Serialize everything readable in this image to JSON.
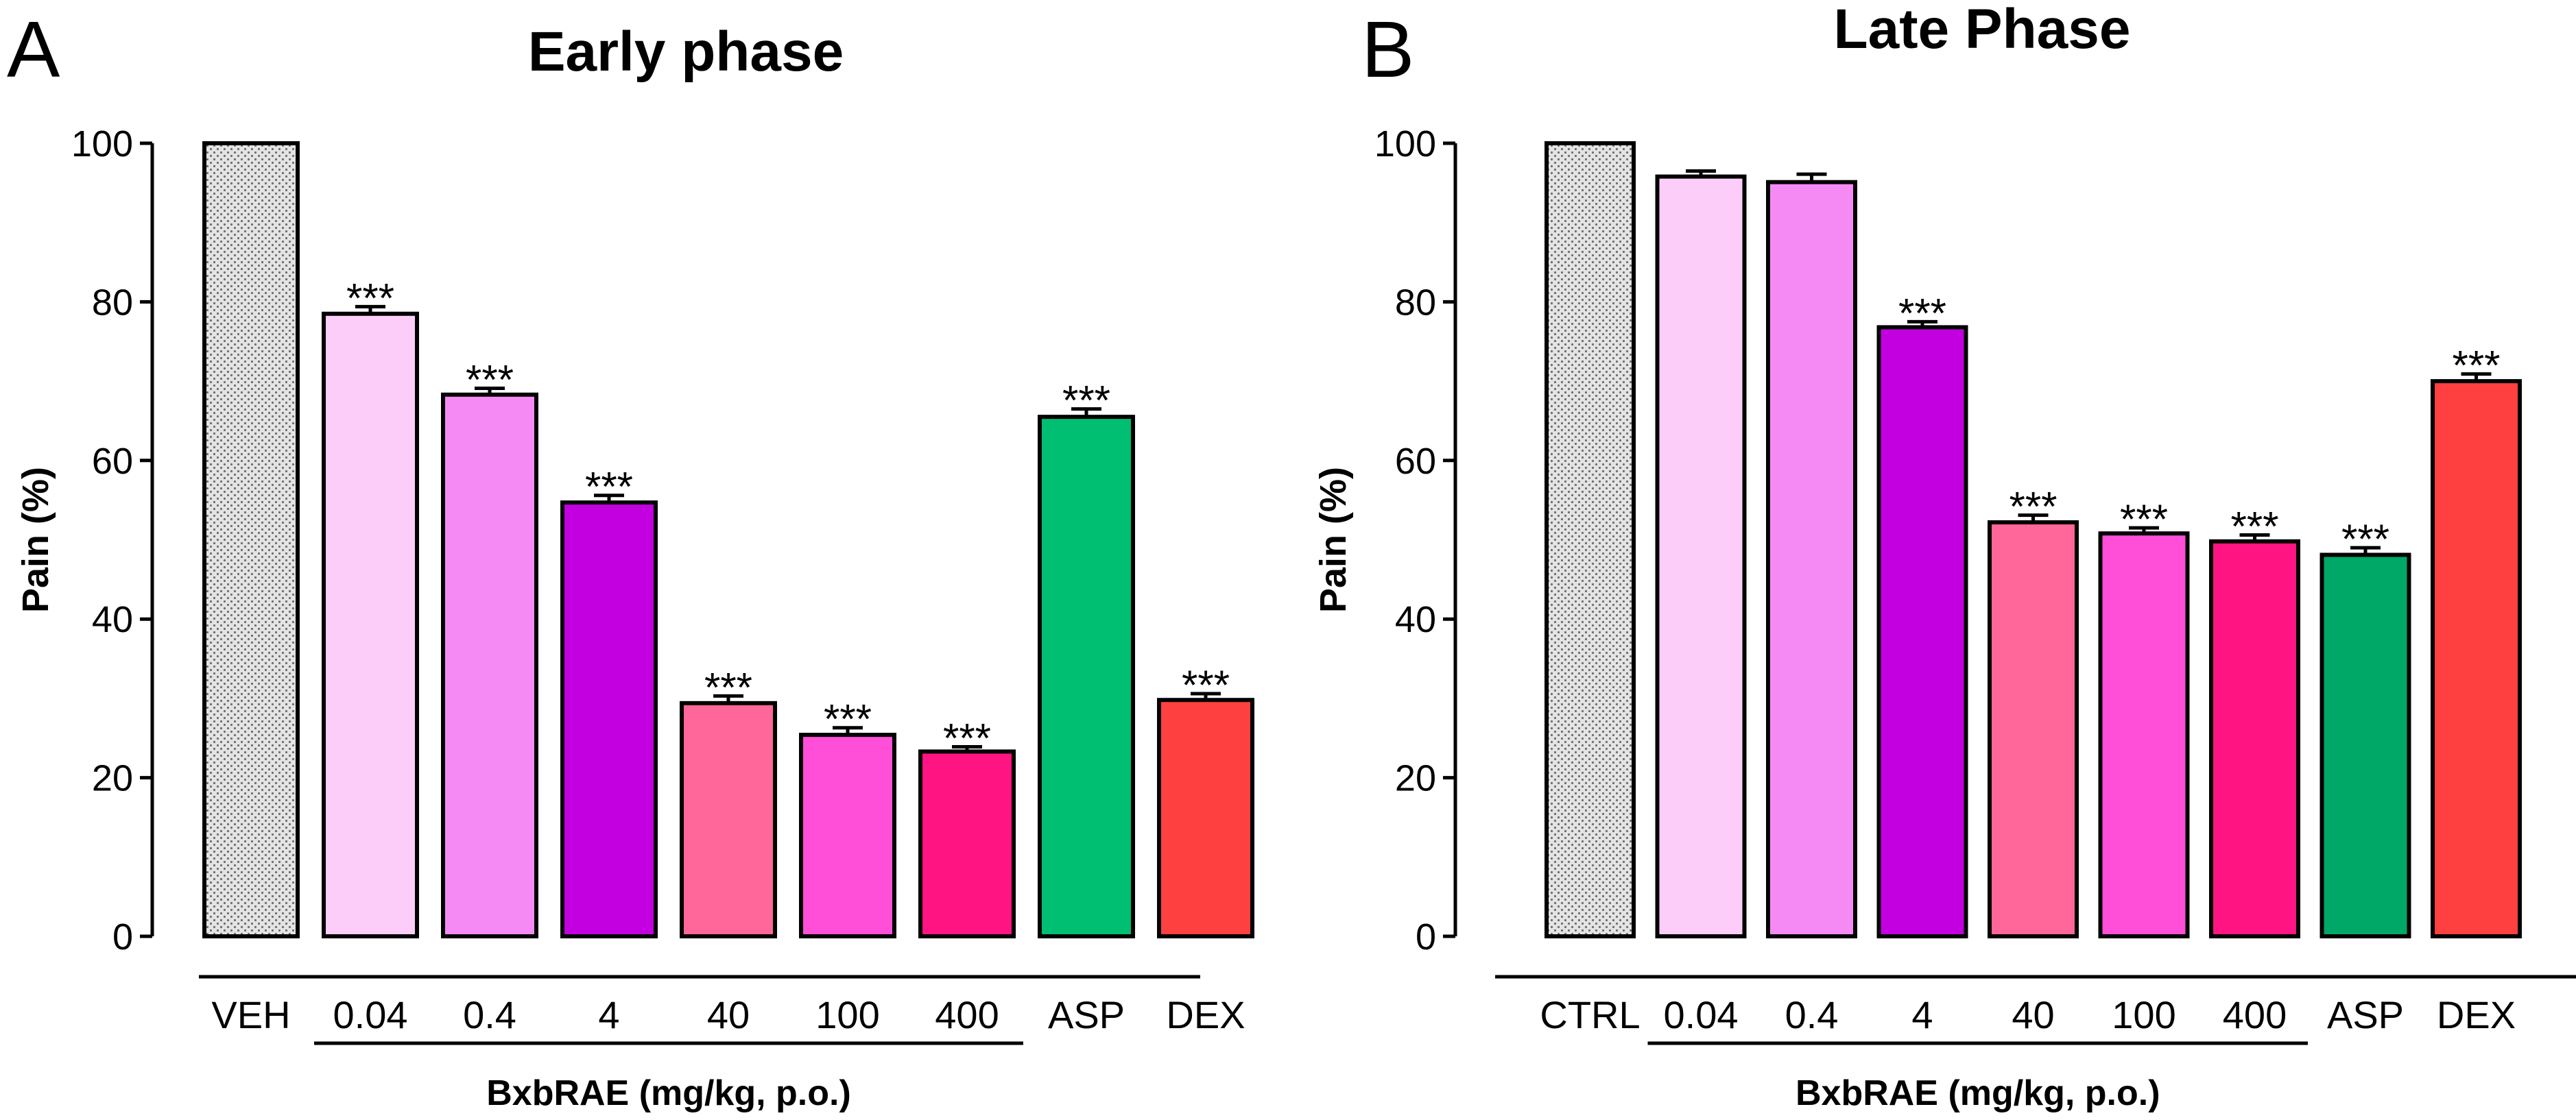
{
  "chart_data": [
    {
      "type": "bar",
      "panel_label": "A",
      "title": "Early phase",
      "ylabel": "Pain (%)",
      "ylim": [
        0,
        100
      ],
      "yticks": [
        0,
        20,
        40,
        60,
        80,
        100
      ],
      "categories": [
        "VEH",
        "0.04",
        "0.4",
        "4",
        "40",
        "100",
        "400",
        "ASP",
        "DEX"
      ],
      "values": [
        100,
        78.5,
        68.3,
        54.7,
        29.4,
        25.4,
        23.3,
        65.5,
        29.8
      ],
      "errors": [
        0,
        0.9,
        0.8,
        0.9,
        0.9,
        0.9,
        0.6,
        1.0,
        0.8
      ],
      "significance": [
        "",
        "***",
        "***",
        "***",
        "***",
        "***",
        "***",
        "***",
        "***"
      ],
      "colors": [
        "#d9d9d9",
        "#fccdf8",
        "#f58af5",
        "#c300e0",
        "#ff6699",
        "#ff4fd8",
        "#ff1482",
        "#00bf72",
        "#ff4040"
      ],
      "group_label": "BxbRAE (mg/kg, p.o.)",
      "group_range": [
        1,
        6
      ]
    },
    {
      "type": "bar",
      "panel_label": "B",
      "title": "Late Phase",
      "ylabel": "Pain (%)",
      "ylim": [
        0,
        100
      ],
      "yticks": [
        0,
        20,
        40,
        60,
        80,
        100
      ],
      "categories": [
        "CTRL",
        "0.04",
        "0.4",
        "4",
        "40",
        "100",
        "400",
        "ASP",
        "DEX"
      ],
      "values": [
        100,
        95.8,
        95.1,
        76.8,
        52.2,
        50.8,
        49.8,
        48.1,
        70.0
      ],
      "errors": [
        0,
        0.7,
        1.0,
        0.7,
        0.9,
        0.7,
        0.8,
        0.9,
        0.9
      ],
      "significance": [
        "",
        "",
        "",
        "***",
        "***",
        "***",
        "***",
        "***",
        "***"
      ],
      "colors": [
        "#d9d9d9",
        "#fccdf8",
        "#f58af5",
        "#c300e0",
        "#ff6699",
        "#ff4fd8",
        "#ff1482",
        "#00a868",
        "#ff4040"
      ],
      "group_label": "BxbRAE (mg/kg, p.o.)",
      "group_range": [
        1,
        6
      ]
    }
  ]
}
